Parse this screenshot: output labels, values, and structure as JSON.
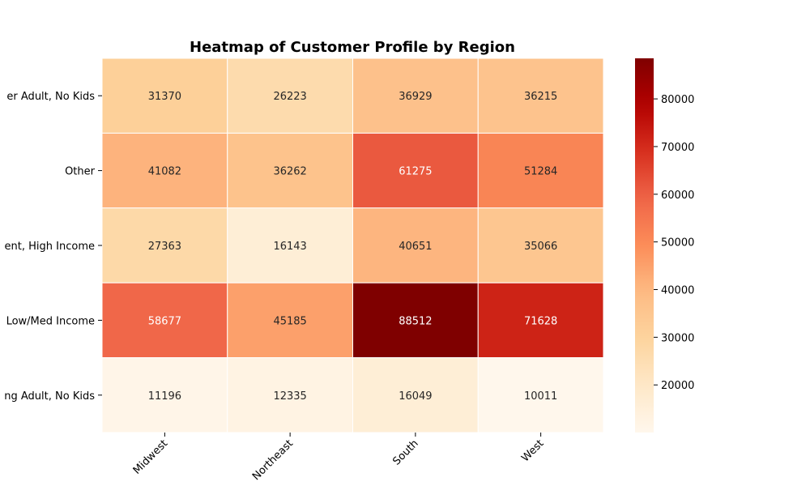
{
  "chart_data": {
    "type": "heatmap",
    "title": "Heatmap of Customer Profile by Region",
    "xlabel": "",
    "ylabel": "",
    "x_categories": [
      "Midwest",
      "Northeast",
      "South",
      "West"
    ],
    "y_categories": [
      "er Adult, No Kids",
      "Other",
      "ent, High Income",
      "Low/Med Income",
      "ng Adult, No Kids"
    ],
    "values": [
      [
        31370,
        26223,
        36929,
        36215
      ],
      [
        41082,
        36262,
        61275,
        51284
      ],
      [
        27363,
        16143,
        40651,
        35066
      ],
      [
        58677,
        45185,
        88512,
        71628
      ],
      [
        11196,
        12335,
        16049,
        10011
      ]
    ],
    "annotated": true,
    "colormap": "OrRd",
    "color_range": [
      10011,
      88512
    ],
    "colorbar_ticks": [
      20000,
      30000,
      40000,
      50000,
      60000,
      70000,
      80000
    ],
    "colorbar_tick_labels": [
      "20000",
      "30000",
      "40000",
      "50000",
      "60000",
      "70000",
      "80000"
    ],
    "colors": {
      "low": "#fff7ec",
      "high": "#7f0000",
      "cell_border": "#ffffff"
    }
  }
}
